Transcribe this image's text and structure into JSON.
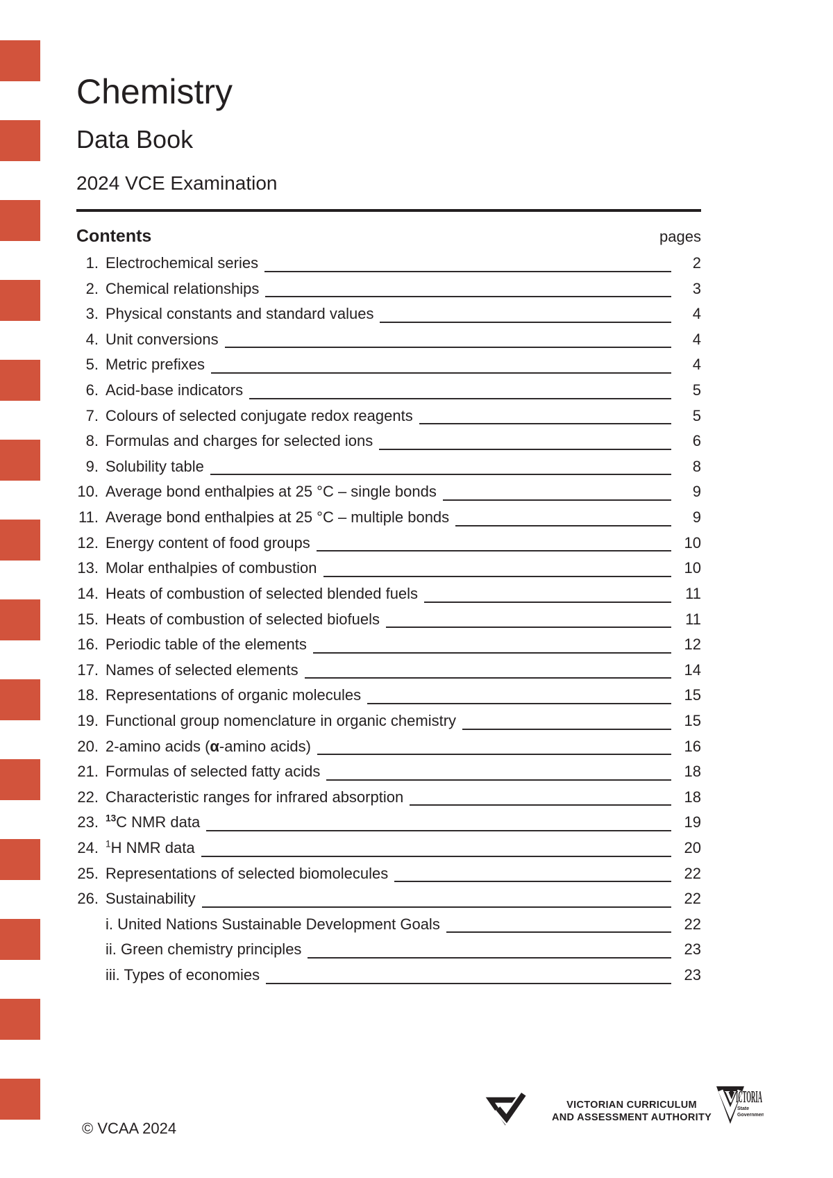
{
  "header": {
    "title": "Chemistry",
    "subtitle": "Data Book",
    "exam_line": "2024 VCE Examination"
  },
  "contents": {
    "heading": "Contents",
    "pages_label": "pages",
    "items": [
      {
        "num": "1.",
        "page": "2",
        "parts": [
          {
            "t": "Electrochemical series"
          }
        ]
      },
      {
        "num": "2.",
        "page": "3",
        "parts": [
          {
            "t": "Chemical relationships"
          }
        ]
      },
      {
        "num": "3.",
        "page": "4",
        "parts": [
          {
            "t": "Physical constants and standard values"
          }
        ]
      },
      {
        "num": "4.",
        "page": "4",
        "parts": [
          {
            "t": "Unit conversions"
          }
        ]
      },
      {
        "num": "5.",
        "page": "4",
        "parts": [
          {
            "t": "Metric prefixes"
          }
        ]
      },
      {
        "num": "6.",
        "page": "5",
        "parts": [
          {
            "t": "Acid-base indicators"
          }
        ]
      },
      {
        "num": "7.",
        "page": "5",
        "parts": [
          {
            "t": "Colours of selected conjugate redox reagents"
          }
        ]
      },
      {
        "num": "8.",
        "page": "6",
        "parts": [
          {
            "t": "Formulas and charges for selected ions"
          }
        ]
      },
      {
        "num": "9.",
        "page": "8",
        "parts": [
          {
            "t": "Solubility table"
          }
        ]
      },
      {
        "num": "10.",
        "page": "9",
        "parts": [
          {
            "t": "Average bond enthalpies at 25 °C – single bonds"
          }
        ]
      },
      {
        "num": "11.",
        "page": "9",
        "parts": [
          {
            "t": "Average bond enthalpies at 25 °C – multiple bonds"
          }
        ]
      },
      {
        "num": "12.",
        "page": "10",
        "parts": [
          {
            "t": "Energy content of food groups"
          }
        ]
      },
      {
        "num": "13.",
        "page": "10",
        "parts": [
          {
            "t": "Molar enthalpies of combustion"
          }
        ]
      },
      {
        "num": "14.",
        "page": "11",
        "parts": [
          {
            "t": "Heats of combustion of selected blended fuels"
          }
        ]
      },
      {
        "num": "15.",
        "page": "11",
        "parts": [
          {
            "t": "Heats of combustion of selected biofuels"
          }
        ]
      },
      {
        "num": "16.",
        "page": "12",
        "parts": [
          {
            "t": "Periodic table of the elements"
          }
        ]
      },
      {
        "num": "17.",
        "page": "14",
        "parts": [
          {
            "t": "Names of selected elements"
          }
        ]
      },
      {
        "num": "18.",
        "page": "15",
        "parts": [
          {
            "t": "Representations of organic molecules"
          }
        ]
      },
      {
        "num": "19.",
        "page": "15",
        "parts": [
          {
            "t": "Functional group nomenclature in organic chemistry"
          }
        ]
      },
      {
        "num": "20.",
        "page": "16",
        "parts": [
          {
            "t": "2-amino acids ("
          },
          {
            "t": "α",
            "b": true
          },
          {
            "t": "-amino acids)"
          }
        ]
      },
      {
        "num": "21.",
        "page": "18",
        "parts": [
          {
            "t": "Formulas of selected fatty acids"
          }
        ]
      },
      {
        "num": "22.",
        "page": "18",
        "parts": [
          {
            "t": "Characteristic ranges for infrared absorption"
          }
        ]
      },
      {
        "num": "23.",
        "page": "19",
        "parts": [
          {
            "t": "13",
            "sup": true,
            "b": true
          },
          {
            "t": "C NMR data"
          }
        ]
      },
      {
        "num": "24.",
        "page": "20",
        "parts": [
          {
            "t": "1",
            "sup": true
          },
          {
            "t": "H NMR data"
          }
        ]
      },
      {
        "num": "25.",
        "page": "22",
        "parts": [
          {
            "t": "Representations of selected biomolecules"
          }
        ]
      },
      {
        "num": "26.",
        "page": "22",
        "parts": [
          {
            "t": "Sustainability"
          }
        ]
      },
      {
        "num": "",
        "indent": true,
        "page": "22",
        "parts": [
          {
            "t": "i. United Nations Sustainable Development Goals"
          }
        ]
      },
      {
        "num": "",
        "indent": true,
        "page": "23",
        "parts": [
          {
            "t": "ii. Green chemistry principles"
          }
        ]
      },
      {
        "num": "",
        "indent": true,
        "page": "23",
        "parts": [
          {
            "t": "iii. Types of economies"
          }
        ]
      }
    ]
  },
  "footer": {
    "copyright": "© VCAA 2024",
    "vcaa_logo_line1": "VICTORIAN CURRICULUM",
    "vcaa_logo_line2": "AND ASSESSMENT AUTHORITY",
    "victoria_v": "V",
    "victoria_rest": "ICTORIA",
    "victoria_sub1": "State",
    "victoria_sub2": "Government"
  },
  "colors": {
    "accent_red": "#d2533c",
    "text": "#231f20"
  }
}
